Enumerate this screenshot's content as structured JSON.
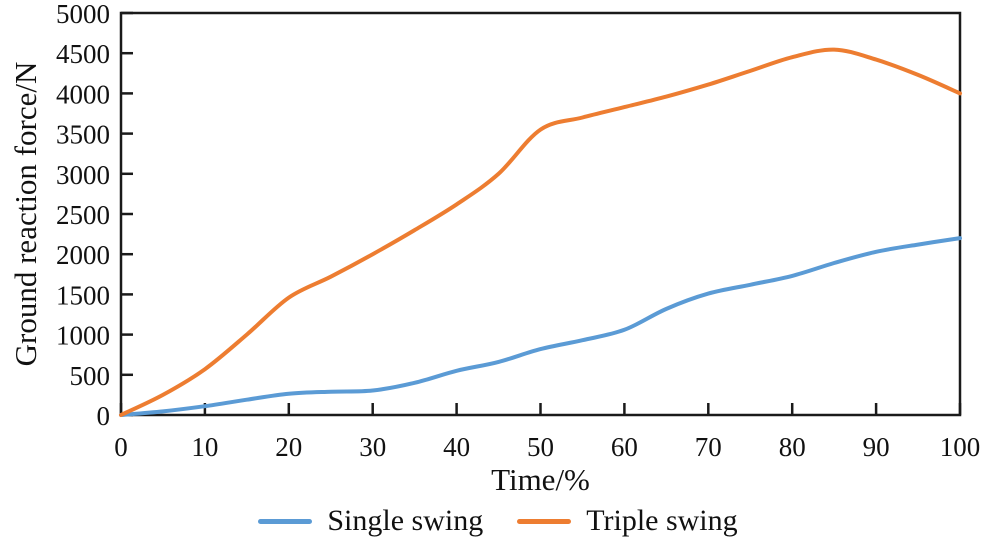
{
  "chart_data": {
    "type": "line",
    "title": "",
    "xlabel": "Time/%",
    "ylabel": "Ground reaction force/N",
    "xlim": [
      0,
      100
    ],
    "ylim": [
      0,
      5000
    ],
    "x_ticks": [
      0,
      10,
      20,
      30,
      40,
      50,
      60,
      70,
      80,
      90,
      100
    ],
    "y_ticks": [
      0,
      500,
      1000,
      1500,
      2000,
      2500,
      3000,
      3500,
      4000,
      4500,
      5000
    ],
    "grid": false,
    "legend_position": "bottom-center",
    "x": [
      0,
      5,
      10,
      15,
      20,
      25,
      30,
      35,
      40,
      45,
      50,
      55,
      60,
      65,
      70,
      75,
      80,
      85,
      90,
      95,
      100
    ],
    "series": [
      {
        "name": "Single swing",
        "color": "#5B9BD5",
        "values": [
          0,
          45,
          110,
          190,
          265,
          290,
          305,
          400,
          550,
          660,
          820,
          930,
          1060,
          1320,
          1510,
          1620,
          1730,
          1890,
          2030,
          2120,
          2200
        ]
      },
      {
        "name": "Triple swing",
        "color": "#ED7D31",
        "values": [
          0,
          250,
          570,
          1000,
          1460,
          1720,
          2000,
          2300,
          2620,
          3000,
          3550,
          3700,
          3830,
          3960,
          4110,
          4280,
          4450,
          4545,
          4420,
          4230,
          4000
        ]
      }
    ],
    "axis_color": "#1a1a1a",
    "tick_label_color": "#111111"
  }
}
